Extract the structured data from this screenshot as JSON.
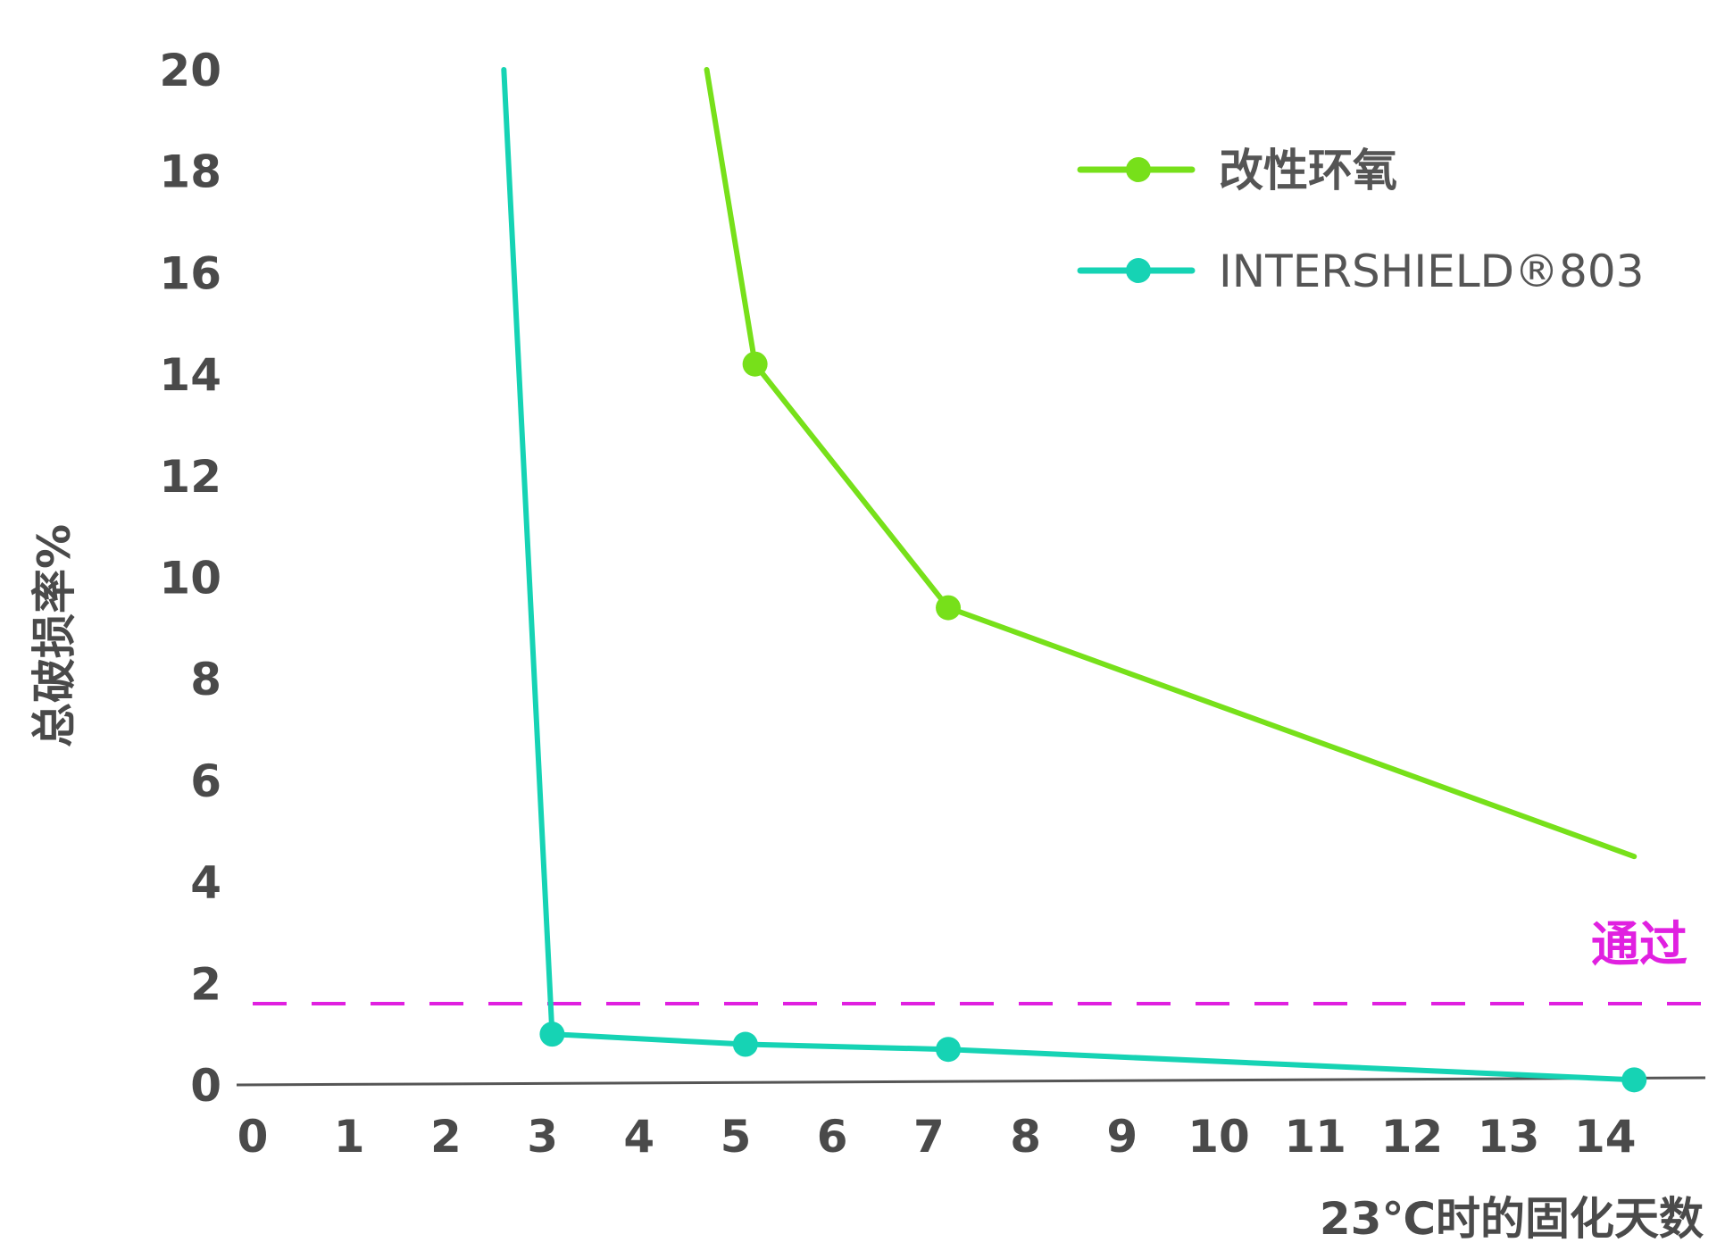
{
  "colors": {
    "background": "#ffffff",
    "axis": "#555555",
    "text": "#4a4a4a",
    "series_epoxy": "#77e01a",
    "series_intershield": "#16d3b4",
    "threshold": "#e020e0"
  },
  "chart_data": {
    "type": "line",
    "title": "",
    "xlabel": "23℃时的固化天数",
    "ylabel": "总破损率%",
    "xlim": [
      0,
      14.3
    ],
    "ylim": [
      0,
      20
    ],
    "x_ticks": [
      "0",
      "1",
      "2",
      "3",
      "4",
      "5",
      "6",
      "7",
      "8",
      "9",
      "10",
      "11",
      "12",
      "13",
      "14"
    ],
    "y_ticks": [
      "0",
      "2",
      "4",
      "6",
      "8",
      "10",
      "12",
      "14",
      "16",
      "18",
      "20"
    ],
    "grid": false,
    "legend_position": "top-right",
    "series": [
      {
        "name": "改性环氧",
        "color": "#77e01a",
        "points": [
          {
            "x": 4.7,
            "y": 20,
            "marker": false
          },
          {
            "x": 5.2,
            "y": 14.2,
            "marker": true
          },
          {
            "x": 7.2,
            "y": 9.4,
            "marker": true
          },
          {
            "x": 14.3,
            "y": 4.5,
            "marker": false
          }
        ]
      },
      {
        "name": "INTERSHIELD®803",
        "color": "#16d3b4",
        "points": [
          {
            "x": 2.6,
            "y": 20,
            "marker": false
          },
          {
            "x": 3.1,
            "y": 1.0,
            "marker": true
          },
          {
            "x": 5.1,
            "y": 0.8,
            "marker": true
          },
          {
            "x": 7.2,
            "y": 0.7,
            "marker": true
          },
          {
            "x": 14.3,
            "y": 0.1,
            "marker": true
          }
        ]
      }
    ],
    "threshold": {
      "y": 1.6,
      "label": "通过",
      "color": "#e020e0",
      "style": "dashed"
    }
  }
}
